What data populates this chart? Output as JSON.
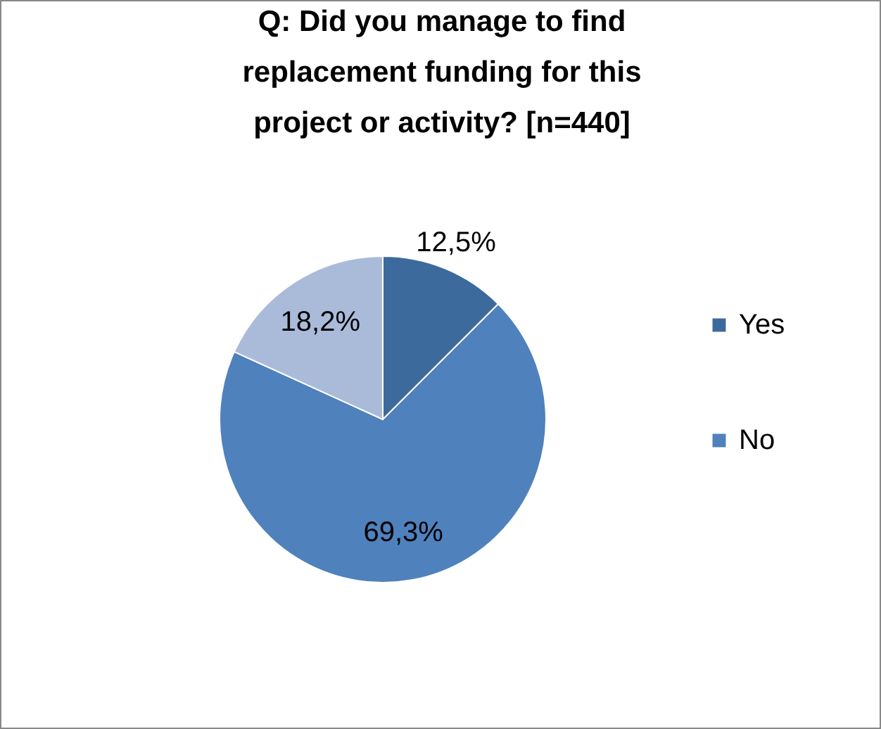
{
  "chart_data": {
    "type": "pie",
    "title": "Q: Did you manage to find\nreplacement funding for this\nproject or activity?  [n=440]",
    "categories": [
      "Yes",
      "No",
      null
    ],
    "values": [
      12.5,
      69.3,
      18.2
    ],
    "colors": [
      "#3d6a9c",
      "#4f81bd",
      "#aabbda"
    ],
    "value_labels": [
      "12,5%",
      "69,3%",
      "18,2%"
    ],
    "legend": "right"
  }
}
